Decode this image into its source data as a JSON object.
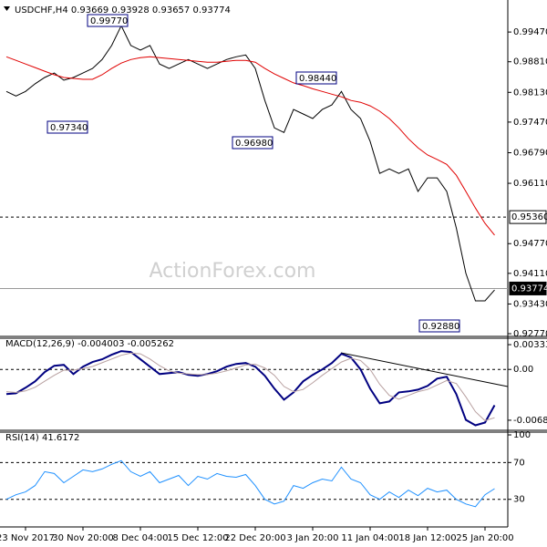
{
  "chart_data": [
    {
      "type": "line",
      "title": "USDCHF,H4  0.93669 0.93928 0.93657 0.93774",
      "categories": [
        null,
        null,
        "23 Nov 2017",
        null,
        null,
        null,
        null,
        null,
        "30 Nov 20:00",
        null,
        null,
        null,
        null,
        null,
        "8 Dec 04:00",
        null,
        null,
        null,
        null,
        null,
        "15 Dec 12:00",
        null,
        null,
        null,
        null,
        null,
        "22 Dec 20:00",
        null,
        null,
        null,
        null,
        null,
        "3 Jan 20:00",
        null,
        null,
        null,
        null,
        null,
        "11 Jan 04:00",
        null,
        null,
        null,
        null,
        null,
        "18 Jan 12:00",
        null,
        null,
        null,
        null,
        null,
        "25 Jan 20:00",
        null
      ],
      "series": [
        {
          "color": "#000000",
          "values": [
            0.9815,
            0.9805,
            0.9815,
            0.9832,
            0.9846,
            0.9856,
            0.984,
            0.9846,
            0.9856,
            0.9866,
            0.9886,
            0.9917,
            0.9961,
            0.9917,
            0.9907,
            0.9917,
            0.9876,
            0.9866,
            0.9876,
            0.9886,
            0.9876,
            0.9866,
            0.9876,
            0.9886,
            0.9892,
            0.9896,
            0.9866,
            0.9795,
            0.9734,
            0.9724,
            0.9775,
            0.9765,
            0.9755,
            0.9775,
            0.9785,
            0.9815,
            0.9775,
            0.9755,
            0.9704,
            0.9633,
            0.9643,
            0.9633,
            0.9643,
            0.9593,
            0.9623,
            0.9623,
            0.9593,
            0.9512,
            0.9411,
            0.935,
            0.935,
            0.9374
          ]
        },
        {
          "color": "#e00000",
          "values": [
            0.9892,
            0.9884,
            0.9876,
            0.9868,
            0.986,
            0.9852,
            0.9846,
            0.9844,
            0.9842,
            0.9842,
            0.9852,
            0.9866,
            0.9878,
            0.9886,
            0.989,
            0.9892,
            0.989,
            0.9888,
            0.9886,
            0.9884,
            0.9882,
            0.988,
            0.988,
            0.9882,
            0.9884,
            0.9884,
            0.988,
            0.9866,
            0.9854,
            0.9844,
            0.9834,
            0.9828,
            0.9821,
            0.9815,
            0.9809,
            0.9803,
            0.9795,
            0.9791,
            0.9783,
            0.9771,
            0.9755,
            0.9734,
            0.971,
            0.969,
            0.9674,
            0.9664,
            0.9653,
            0.9629,
            0.9593,
            0.9556,
            0.9522,
            0.9496
          ]
        }
      ],
      "ylim": [
        0.9273,
        1.0008
      ],
      "yticks": [
        {
          "value": 0.9947,
          "label": "0.99470"
        },
        {
          "value": 0.9881,
          "label": "0.98810"
        },
        {
          "value": 0.9813,
          "label": "0.98130"
        },
        {
          "value": 0.9747,
          "label": "0.97470"
        },
        {
          "value": 0.9679,
          "label": "0.96790"
        },
        {
          "value": 0.9611,
          "label": "0.96110"
        },
        {
          "value": 0.9477,
          "label": "0.94770"
        },
        {
          "value": 0.9411,
          "label": "0.94110"
        },
        {
          "value": 0.9343,
          "label": "0.93430"
        },
        {
          "value": 0.9277,
          "label": "0.92770"
        }
      ],
      "hlines": [
        {
          "value": 0.9536,
          "label": "0.95360"
        },
        {
          "value": 0.93774,
          "label": "0.93774"
        }
      ],
      "annotations": [
        "0.99770",
        "0.97340",
        "0.96980",
        "0.98440",
        "0.92880"
      ],
      "watermark": "ActionForex.com"
    },
    {
      "type": "line",
      "title": "MACD(12,26,9) -0.004003 -0.005262",
      "series": [
        {
          "color": "#000080",
          "values": [
            -0.00333,
            -0.00321,
            -0.00247,
            -0.00161,
            -0.00037,
            0.00049,
            0.00062,
            -0.00062,
            0.00037,
            0.00099,
            0.00136,
            0.00198,
            0.00247,
            0.00235,
            0.00136,
            0.00037,
            -0.00062,
            -0.00049,
            -0.00037,
            -0.00074,
            -0.00086,
            -0.00062,
            -0.00025,
            0.00037,
            0.00074,
            0.00086,
            0.00037,
            -0.00086,
            -0.00259,
            -0.00408,
            -0.00309,
            -0.00161,
            -0.00074,
            0,
            0.00086,
            0.0021,
            0.00161,
            0,
            -0.00259,
            -0.00457,
            -0.00432,
            -0.00309,
            -0.00296,
            -0.00272,
            -0.00222,
            -0.00124,
            -0.00099,
            -0.00333,
            -0.00679,
            -0.00753,
            -0.00716,
            -0.00482
          ]
        },
        {
          "color": "#b8a0a0",
          "values": [
            -0.003,
            -0.0031,
            -0.0029,
            -0.0024,
            -0.0016,
            -0.0008,
            -0.0001,
            -0.0001,
            0.0001,
            0.0004,
            0.0009,
            0.0014,
            0.0019,
            0.0022,
            0.0021,
            0.0014,
            0.0005,
            -0.0002,
            -0.0005,
            -0.0006,
            -0.0007,
            -0.0007,
            -0.0005,
            -0.0002,
            0.0002,
            0.0006,
            0.0007,
            0.0002,
            -0.0008,
            -0.0023,
            -0.003,
            -0.0027,
            -0.0018,
            -0.0008,
            0.0001,
            0.001,
            0.0015,
            0.0012,
            0,
            -0.002,
            -0.0035,
            -0.004,
            -0.0035,
            -0.003,
            -0.0027,
            -0.0021,
            -0.0015,
            -0.0019,
            -0.0037,
            -0.0057,
            -0.0069,
            -0.0065
          ]
        }
      ],
      "ylim": [
        -0.0082,
        0.0042
      ],
      "yticks": [
        0.003335,
        {
          "value": 0,
          "label": "0.00"
        },
        -0.006843
      ],
      "levels": [
        0
      ]
    },
    {
      "type": "line",
      "title": "RSI(14) 41.6172",
      "series": [
        {
          "color": "#1e90ff",
          "values": [
            30,
            35,
            38,
            45,
            60,
            58,
            48,
            55,
            62,
            60,
            63,
            68,
            72,
            60,
            55,
            60,
            48,
            52,
            56,
            45,
            55,
            52,
            58,
            55,
            54,
            57,
            45,
            30,
            25,
            28,
            45,
            42,
            48,
            52,
            50,
            65,
            52,
            48,
            35,
            30,
            38,
            32,
            40,
            34,
            42,
            38,
            40,
            30,
            25,
            22,
            35,
            41.6
          ]
        }
      ],
      "ylim": [
        1,
        103
      ],
      "yticks": [
        100,
        70,
        30
      ],
      "levels": [
        70,
        30
      ]
    }
  ]
}
